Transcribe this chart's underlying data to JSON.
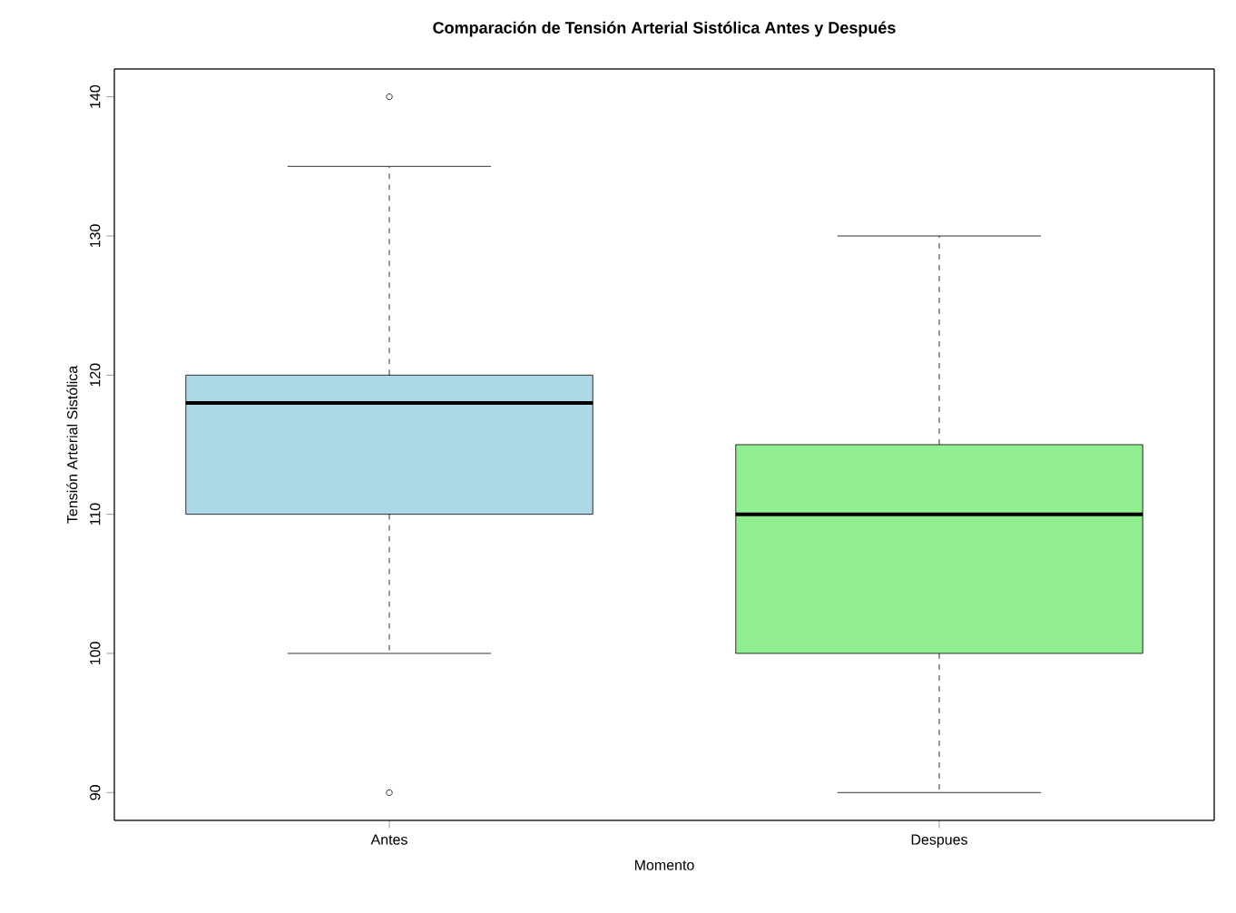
{
  "chart_data": {
    "type": "box",
    "title": "Comparación de Tensión Arterial Sistólica Antes y Después",
    "xlabel": "Momento",
    "ylabel": "Tensión Arterial Sistólica",
    "categories": [
      "Antes",
      "Despues"
    ],
    "boxes": [
      {
        "low": 100,
        "q1": 110,
        "median": 118,
        "q3": 120,
        "high": 135,
        "outliers": [
          140,
          90
        ]
      },
      {
        "low": 90,
        "q1": 100,
        "median": 110,
        "q3": 115,
        "high": 130
      }
    ],
    "colors": [
      "#add8e6",
      "#90ee90"
    ],
    "ylim": [
      88,
      142
    ],
    "yticks": [
      90,
      100,
      110,
      120,
      130,
      140
    ]
  }
}
